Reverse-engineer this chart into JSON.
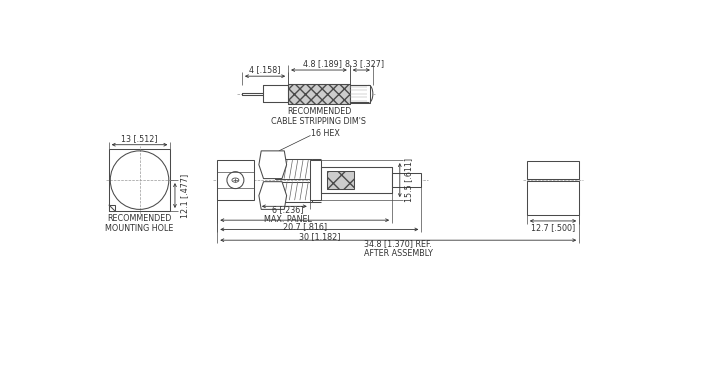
{
  "bg_color": "#ffffff",
  "line_color": "#4a4a4a",
  "text_color": "#333333",
  "cable_strip_label": "RECOMMENDED\nCABLE STRIPPING DIM'S",
  "mount_hole_label": "RECOMMENDED\nMOUNTING HOLE",
  "dim_4": "4 [.158]",
  "dim_4_8": "4.8 [.189]",
  "dim_8_3": "8.3 [.327]",
  "dim_13": "13 [.512]",
  "dim_12_1": "12.1 [.477]",
  "dim_16hex": "16 HEX",
  "dim_6": "6 [.236]\nMAX. PANEL",
  "dim_20_7": "20.7 [.816]",
  "dim_30": "30 [1.182]",
  "dim_34_8": "34.8 [1.370] REF.\nAFTER ASSEMBLY",
  "dim_15_5": "15.5 [.611]",
  "dim_12_7": "12.7 [.500]"
}
